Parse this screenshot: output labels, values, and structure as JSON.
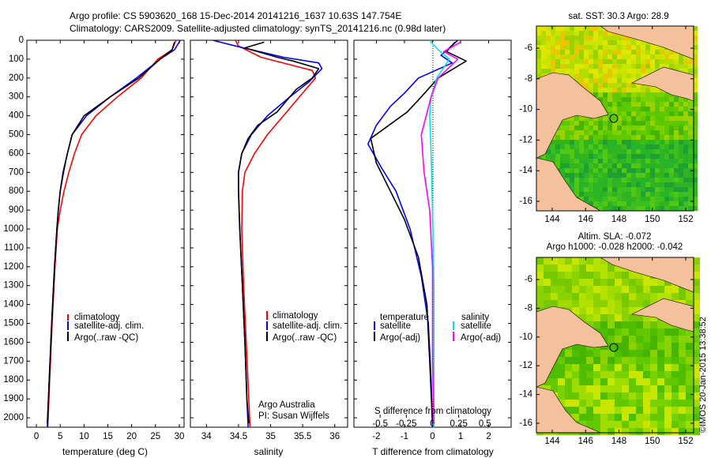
{
  "header": {
    "line1": "Argo profile: CS 5903620_168 15-Dec-2014 20141216_1637 10.63S 147.754E",
    "line2": "Climatology: CARS2009. Satellite-adjusted climatology: synTS_20141216.nc (0.98d later)"
  },
  "colors": {
    "climatology": "#ff0000",
    "satellite": "#0000ff",
    "argo": "#000000",
    "sal_sat": "#00e5e5",
    "sal_argo": "#ff00ff",
    "land": "#f5c09c"
  },
  "chart_data": [
    {
      "type": "line",
      "title": "",
      "xlabel": "temperature (deg C)",
      "ylabel": "",
      "xlim": [
        -2,
        31
      ],
      "ylim": [
        2050,
        0
      ],
      "xticks": [
        0,
        5,
        10,
        15,
        20,
        25,
        30
      ],
      "xtick_labels": [
        "0",
        "5",
        "10",
        "15",
        "20",
        "25",
        "30"
      ],
      "yticks": [
        0,
        100,
        200,
        300,
        400,
        500,
        600,
        700,
        800,
        900,
        1000,
        1100,
        1200,
        1300,
        1400,
        1500,
        1600,
        1700,
        1800,
        1900,
        2000
      ],
      "ytick_labels": [
        "0",
        "100",
        "200",
        "300",
        "400",
        "500",
        "600",
        "700",
        "800",
        "900",
        "1000",
        "1100",
        "1200",
        "1300",
        "1400",
        "1500",
        "1600",
        "1700",
        "1800",
        "1900",
        "2000"
      ],
      "legend": [
        "climatology",
        "satellite-adj. clim.",
        "Argo(..raw -QC)"
      ],
      "series": [
        {
          "name": "climatology",
          "color": "#ff0000",
          "points": [
            [
              29.3,
              0
            ],
            [
              28.5,
              50
            ],
            [
              25.5,
              100
            ],
            [
              22,
              200
            ],
            [
              17,
              300
            ],
            [
              12.5,
              400
            ],
            [
              9.5,
              500
            ],
            [
              8,
              600
            ],
            [
              6.8,
              700
            ],
            [
              5.8,
              800
            ],
            [
              5,
              900
            ],
            [
              4.4,
              1000
            ],
            [
              3.9,
              1200
            ],
            [
              3.3,
              1500
            ],
            [
              2.8,
              1800
            ],
            [
              2.4,
              2050
            ]
          ]
        },
        {
          "name": "satellite-adj. clim.",
          "color": "#0000ff",
          "points": [
            [
              30.2,
              0
            ],
            [
              29,
              50
            ],
            [
              26,
              100
            ],
            [
              21,
              200
            ],
            [
              15.5,
              300
            ],
            [
              10.5,
              400
            ],
            [
              7.5,
              500
            ],
            [
              6.5,
              600
            ],
            [
              5.7,
              700
            ],
            [
              5,
              800
            ],
            [
              4.6,
              900
            ],
            [
              4.3,
              1000
            ],
            [
              3.8,
              1200
            ],
            [
              3.2,
              1500
            ],
            [
              2.7,
              1800
            ],
            [
              2.3,
              2050
            ]
          ]
        },
        {
          "name": "Argo(..raw -QC)",
          "color": "#000000",
          "points": [
            [
              29,
              10
            ],
            [
              28.5,
              50
            ],
            [
              26,
              100
            ],
            [
              21.5,
              200
            ],
            [
              15.5,
              300
            ],
            [
              10,
              400
            ],
            [
              7.5,
              500
            ],
            [
              6.5,
              600
            ],
            [
              5.6,
              700
            ],
            [
              5,
              800
            ],
            [
              4.6,
              900
            ],
            [
              4.3,
              1000
            ],
            [
              3.8,
              1200
            ],
            [
              3.2,
              1500
            ],
            [
              2.7,
              1800
            ],
            [
              2.3,
              2030
            ]
          ]
        }
      ]
    },
    {
      "type": "line",
      "title": "",
      "xlabel": "salinity",
      "ylabel": "",
      "xlim": [
        33.75,
        36.2
      ],
      "ylim": [
        2050,
        0
      ],
      "xticks": [
        34,
        34.5,
        35,
        35.5,
        36
      ],
      "xtick_labels": [
        "34",
        "34.5",
        "35",
        "35.5",
        "36"
      ],
      "legend": [
        "climatology",
        "satellite-adj. clim.",
        "Argo(..raw -QC)"
      ],
      "annotation": [
        "Argo Australia",
        "PI: Susan Wijffels"
      ],
      "series": [
        {
          "name": "climatology",
          "color": "#ff0000",
          "points": [
            [
              34.45,
              0
            ],
            [
              34.5,
              30
            ],
            [
              34.85,
              90
            ],
            [
              35.65,
              160
            ],
            [
              35.7,
              200
            ],
            [
              35.5,
              280
            ],
            [
              35.2,
              400
            ],
            [
              34.95,
              500
            ],
            [
              34.75,
              600
            ],
            [
              34.6,
              700
            ],
            [
              34.56,
              800
            ],
            [
              34.55,
              1000
            ],
            [
              34.58,
              1300
            ],
            [
              34.62,
              1600
            ],
            [
              34.66,
              1900
            ],
            [
              34.68,
              2050
            ]
          ]
        },
        {
          "name": "satellite-adj. clim.",
          "color": "#0000ff",
          "points": [
            [
              34.1,
              0
            ],
            [
              34.45,
              30
            ],
            [
              35.2,
              90
            ],
            [
              35.75,
              120
            ],
            [
              35.8,
              150
            ],
            [
              35.6,
              220
            ],
            [
              35.3,
              300
            ],
            [
              34.95,
              400
            ],
            [
              34.7,
              500
            ],
            [
              34.55,
              600
            ],
            [
              34.5,
              700
            ],
            [
              34.5,
              800
            ],
            [
              34.52,
              1000
            ],
            [
              34.56,
              1300
            ],
            [
              34.6,
              1600
            ],
            [
              34.63,
              1900
            ],
            [
              34.65,
              2050
            ]
          ]
        },
        {
          "name": "Argo(..raw -QC)",
          "color": "#000000",
          "points": [
            [
              34.9,
              10
            ],
            [
              34.6,
              40
            ],
            [
              35.1,
              90
            ],
            [
              35.35,
              110
            ],
            [
              35.75,
              150
            ],
            [
              35.65,
              200
            ],
            [
              35.4,
              260
            ],
            [
              35.1,
              380
            ],
            [
              34.8,
              450
            ],
            [
              34.65,
              520
            ],
            [
              34.55,
              600
            ],
            [
              34.5,
              700
            ],
            [
              34.5,
              800
            ],
            [
              34.52,
              1000
            ],
            [
              34.56,
              1300
            ],
            [
              34.6,
              1600
            ],
            [
              34.63,
              1900
            ],
            [
              34.66,
              2030
            ]
          ]
        }
      ]
    },
    {
      "type": "line",
      "title": "",
      "xlabel": "T difference from climatology",
      "top_axis_label": "S difference from climatology",
      "ylabel": "",
      "xlim": [
        -2.8,
        2.8
      ],
      "ylim": [
        2050,
        0
      ],
      "xticks": [
        -2,
        -1,
        0,
        1,
        2
      ],
      "xtick_labels": [
        "-2",
        "-1",
        "0",
        "1",
        "2"
      ],
      "s_ticks": [
        -0.5,
        -0.25,
        0,
        0.25,
        0.5
      ],
      "s_tick_labels": [
        "-0.5",
        "-0.25",
        "0",
        "0.25",
        "0.5"
      ],
      "legend_headers": [
        "temperature",
        "salinity"
      ],
      "legend": [
        "satellite",
        "Argo(-adj)",
        "satellite",
        "Argo(-adj)"
      ],
      "series": [
        {
          "name": "temperature satellite",
          "color": "#0000ff",
          "points": [
            [
              0.9,
              0
            ],
            [
              0.3,
              80
            ],
            [
              0.7,
              120
            ],
            [
              -0.5,
              200
            ],
            [
              -1,
              280
            ],
            [
              -1.5,
              350
            ],
            [
              -2,
              450
            ],
            [
              -2.3,
              550
            ],
            [
              -1.8,
              680
            ],
            [
              -1.3,
              800
            ],
            [
              -0.8,
              1000
            ],
            [
              -0.4,
              1250
            ],
            [
              -0.15,
              1500
            ],
            [
              -0.05,
              1800
            ],
            [
              0,
              2050
            ]
          ]
        },
        {
          "name": "temperature Argo(-adj)",
          "color": "#000000",
          "points": [
            [
              0.8,
              10
            ],
            [
              0.5,
              60
            ],
            [
              1.2,
              110
            ],
            [
              0.2,
              200
            ],
            [
              -0.4,
              300
            ],
            [
              -0.9,
              380
            ],
            [
              -2.2,
              520
            ],
            [
              -2,
              650
            ],
            [
              -1.5,
              800
            ],
            [
              -1,
              950
            ],
            [
              -0.5,
              1150
            ],
            [
              -0.2,
              1400
            ],
            [
              -0.1,
              1700
            ],
            [
              0,
              2030
            ]
          ]
        },
        {
          "name": "salinity satellite",
          "color": "#00e5e5",
          "points": [
            [
              -0.1,
              0
            ],
            [
              0.2,
              50
            ],
            [
              0.6,
              100
            ],
            [
              0.15,
              200
            ],
            [
              -0.05,
              300
            ],
            [
              -0.1,
              400
            ],
            [
              -0.05,
              600
            ],
            [
              0,
              900
            ],
            [
              0.05,
              1300
            ],
            [
              0.05,
              1700
            ],
            [
              0.05,
              2050
            ]
          ]
        },
        {
          "name": "salinity Argo(-adj)",
          "color": "#ff00ff",
          "points": [
            [
              1,
              10
            ],
            [
              0.4,
              60
            ],
            [
              0.9,
              100
            ],
            [
              0.2,
              200
            ],
            [
              -0.05,
              300
            ],
            [
              -0.4,
              500
            ],
            [
              -0.3,
              700
            ],
            [
              -0.1,
              900
            ],
            [
              0,
              1200
            ],
            [
              0,
              1700
            ],
            [
              0.05,
              2030
            ]
          ]
        }
      ]
    }
  ],
  "maps": {
    "sst": {
      "title": "sat. SST: 30.3 Argo: 28.9",
      "yticks": [
        "-6",
        "-8",
        "-10",
        "-12",
        "-14",
        "-16"
      ],
      "xticks": [
        "144",
        "146",
        "148",
        "150",
        "152"
      ],
      "argo_lon": 147.754,
      "argo_lat": -10.63
    },
    "sla": {
      "title1": "Altim. SLA: -0.072",
      "title2": "Argo h1000: -0.028 h2000: -0.042",
      "yticks": [
        "-6",
        "-8",
        "-10",
        "-12",
        "-14",
        "-16"
      ],
      "xticks": [
        "144",
        "146",
        "148",
        "150",
        "152"
      ]
    },
    "credit": "©IMOS 20-Jan-2015 13:38:52"
  }
}
